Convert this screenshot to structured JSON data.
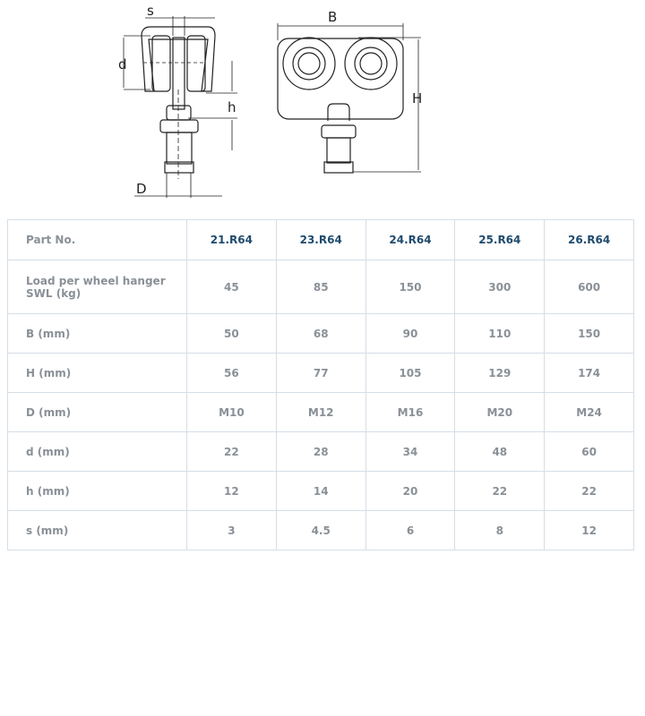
{
  "drawing": {
    "labels": {
      "s": "s",
      "d": "d",
      "h": "h",
      "D": "D",
      "B": "B",
      "H": "H"
    }
  },
  "table": {
    "header_label": "Part No.",
    "columns": [
      "21.R64",
      "23.R64",
      "24.R64",
      "25.R64",
      "26.R64"
    ],
    "rows": [
      {
        "label": "Load per wheel hanger SWL (kg)",
        "values": [
          "45",
          "85",
          "150",
          "300",
          "600"
        ]
      },
      {
        "label": "B (mm)",
        "values": [
          "50",
          "68",
          "90",
          "110",
          "150"
        ]
      },
      {
        "label": "H (mm)",
        "values": [
          "56",
          "77",
          "105",
          "129",
          "174"
        ]
      },
      {
        "label": "D (mm)",
        "values": [
          "M10",
          "M12",
          "M16",
          "M20",
          "M24"
        ]
      },
      {
        "label": "d (mm)",
        "values": [
          "22",
          "28",
          "34",
          "48",
          "60"
        ]
      },
      {
        "label": "h (mm)",
        "values": [
          "12",
          "14",
          "20",
          "22",
          "22"
        ]
      },
      {
        "label": "s (mm)",
        "values": [
          "3",
          "4.5",
          "6",
          "8",
          "12"
        ]
      }
    ]
  }
}
